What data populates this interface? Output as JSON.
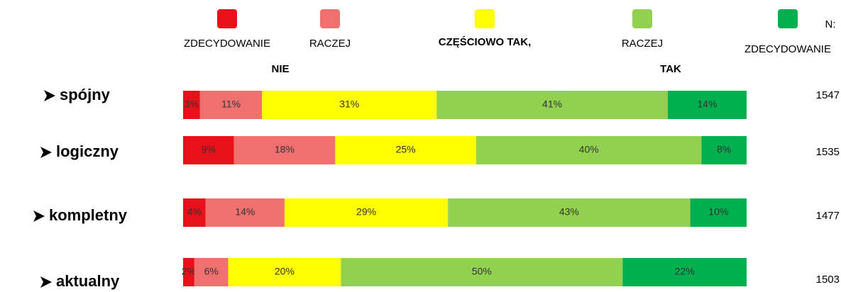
{
  "chart_data": {
    "type": "stacked_bar_horizontal",
    "categories": [
      "spójny",
      "logiczny",
      "kompletny",
      "aktualny"
    ],
    "xlim": [
      0,
      100
    ],
    "series": [
      {
        "name": "ZDECYDOWANIE",
        "color": "#e8101a",
        "values": [
          3,
          9,
          4,
          2
        ],
        "value_labels": [
          "3%",
          "9%",
          "4%",
          "2%"
        ]
      },
      {
        "name": "RACZEJ",
        "color": "#f07070",
        "values": [
          11,
          18,
          14,
          6
        ],
        "value_labels": [
          "11%",
          "18%",
          "14%",
          "6%"
        ]
      },
      {
        "name": "CZĘŚCIOWO TAK,",
        "color": "#ffff00",
        "values": [
          31,
          25,
          29,
          20
        ],
        "value_labels": [
          "31%",
          "25%",
          "29%",
          "20%"
        ]
      },
      {
        "name": "RACZEJ",
        "color": "#92d050",
        "values": [
          41,
          40,
          43,
          50
        ],
        "value_labels": [
          "41%",
          "40%",
          "43%",
          "50%"
        ]
      },
      {
        "name": "ZDECYDOWANIE",
        "color": "#00b050",
        "values": [
          14,
          8,
          10,
          22
        ],
        "value_labels": [
          "14%",
          "8%",
          "10%",
          "22%"
        ]
      }
    ],
    "annotations": [
      "NIE",
      "TAK"
    ],
    "n_header": "N:",
    "n_values": [
      1547,
      1535,
      1477,
      1503
    ]
  }
}
